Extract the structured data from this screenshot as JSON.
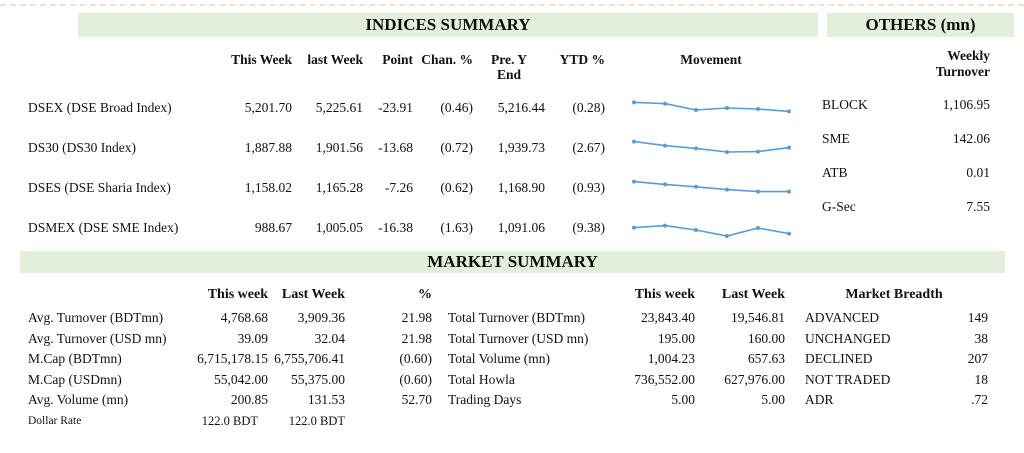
{
  "colors": {
    "header_bg": "#e2efda",
    "sparkline": "#5b9bd5",
    "text": "#111111"
  },
  "indices_summary": {
    "title": "INDICES SUMMARY",
    "columns": [
      "This Week",
      "last Week",
      "Point",
      "Chan. %",
      "Pre. Y\nEnd",
      "YTD %",
      "Movement"
    ],
    "rows": [
      {
        "label": "DSEX (DSE Broad Index)",
        "this_week": "5,201.70",
        "last_week": "5,225.61",
        "point": "-23.91",
        "chan_pct": "(0.46)",
        "pre_y_end": "5,216.44",
        "ytd_pct": "(0.28)",
        "movement": [
          0.78,
          0.72,
          0.4,
          0.5,
          0.45,
          0.33
        ]
      },
      {
        "label": "DS30 (DS30 Index)",
        "this_week": "1,887.88",
        "last_week": "1,901.56",
        "point": "-13.68",
        "chan_pct": "(0.72)",
        "pre_y_end": "1,939.73",
        "ytd_pct": "(2.67)",
        "movement": [
          0.82,
          0.62,
          0.48,
          0.3,
          0.32,
          0.52
        ]
      },
      {
        "label": "DSES (DSE Sharia Index)",
        "this_week": "1,158.02",
        "last_week": "1,165.28",
        "point": "-7.26",
        "chan_pct": "(0.62)",
        "pre_y_end": "1,168.90",
        "ytd_pct": "(0.93)",
        "movement": [
          0.82,
          0.68,
          0.56,
          0.42,
          0.32,
          0.32
        ]
      },
      {
        "label": "DSMEX (DSE SME Index)",
        "this_week": "988.67",
        "last_week": "1,005.05",
        "point": "-16.38",
        "chan_pct": "(1.63)",
        "pre_y_end": "1,091.06",
        "ytd_pct": "(9.38)",
        "movement": [
          0.52,
          0.62,
          0.4,
          0.1,
          0.5,
          0.22
        ]
      }
    ]
  },
  "others": {
    "title": "OTHERS (mn)",
    "column": "Weekly\nTurnover",
    "rows": [
      {
        "label": "BLOCK",
        "value": "1,106.95"
      },
      {
        "label": "SME",
        "value": "142.06"
      },
      {
        "label": "ATB",
        "value": "0.01"
      },
      {
        "label": "G-Sec",
        "value": "7.55"
      }
    ]
  },
  "market_summary": {
    "title": "MARKET SUMMARY",
    "left_table": {
      "columns": [
        "This week",
        "Last Week",
        "%"
      ],
      "rows": [
        {
          "label": "Avg. Turnover (BDTmn)",
          "this_week": "4,768.68",
          "last_week": "3,909.36",
          "pct": "21.98"
        },
        {
          "label": "Avg. Turnover (USD mn)",
          "this_week": "39.09",
          "last_week": "32.04",
          "pct": "21.98"
        },
        {
          "label": "M.Cap (BDTmn)",
          "this_week": "6,715,178.15",
          "last_week": "6,755,706.41",
          "pct": "(0.60)"
        },
        {
          "label": "M.Cap (USDmn)",
          "this_week": "55,042.00",
          "last_week": "55,375.00",
          "pct": "(0.60)"
        },
        {
          "label": "Avg. Volume (mn)",
          "this_week": "200.85",
          "last_week": "131.53",
          "pct": "52.70"
        }
      ],
      "footer": {
        "label": "Dollar Rate",
        "this_week": "122.0 BDT",
        "last_week": "122.0 BDT"
      }
    },
    "middle_table": {
      "columns": [
        "This week",
        "Last Week"
      ],
      "rows": [
        {
          "label": "Total Turnover (BDTmn)",
          "this_week": "23,843.40",
          "last_week": "19,546.81"
        },
        {
          "label": "Total Turnover (USD mn)",
          "this_week": "195.00",
          "last_week": "160.00"
        },
        {
          "label": "Total Volume (mn)",
          "this_week": "1,004.23",
          "last_week": "657.63"
        },
        {
          "label": "Total Howla",
          "this_week": "736,552.00",
          "last_week": "627,976.00"
        },
        {
          "label": "Trading Days",
          "this_week": "5.00",
          "last_week": "5.00"
        }
      ]
    },
    "market_breadth": {
      "title": "Market Breadth",
      "rows": [
        {
          "label": "ADVANCED",
          "value": "149"
        },
        {
          "label": "UNCHANGED",
          "value": "38"
        },
        {
          "label": "DECLINED",
          "value": "207"
        },
        {
          "label": "NOT TRADED",
          "value": "18"
        },
        {
          "label": "ADR",
          "value": ".72"
        }
      ]
    }
  }
}
